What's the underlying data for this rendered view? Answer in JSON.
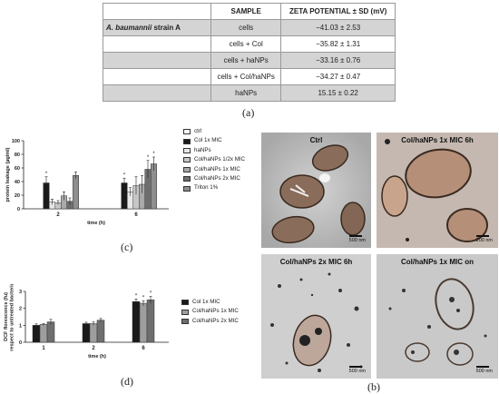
{
  "table": {
    "headers": [
      "",
      "SAMPLE",
      "ZETA POTENTIAL ± SD (mV)"
    ],
    "strain_label": {
      "italic": "A. baumannii",
      "normal": "strain A"
    },
    "rows": [
      {
        "sample": "cells",
        "zeta": "−41.03 ± 2.53"
      },
      {
        "sample": "cells + Col",
        "zeta": "−35.82 ± 1.31"
      },
      {
        "sample": "cells + haNPs",
        "zeta": "−33.16 ± 0.76"
      },
      {
        "sample": "cells + Col/haNPs",
        "zeta": "−34.27 ± 0.47"
      },
      {
        "sample": "haNPs",
        "zeta": "15.15 ± 0.22"
      }
    ]
  },
  "labels": {
    "a": "(a)",
    "b": "(b)",
    "c": "(c)",
    "d": "(d)"
  },
  "chart_data": [
    {
      "type": "bar",
      "ylabel": "protein leakage (µg/ml)",
      "xlabel": "time (h)",
      "categories": [
        "2",
        "6"
      ],
      "ylim": [
        0,
        100
      ],
      "yticks": [
        "0",
        "20",
        "40",
        "60",
        "80",
        "100"
      ],
      "series": [
        {
          "name": "ctrl",
          "color": "#ffffff",
          "values": [
            0,
            0
          ],
          "errors": [
            0,
            0
          ]
        },
        {
          "name": "Col 1x MIC",
          "color": "#1a1a1a",
          "values": [
            38,
            38
          ],
          "errors": [
            9,
            7
          ]
        },
        {
          "name": "haNPs",
          "color": "#e8e8e8",
          "values": [
            10,
            25
          ],
          "errors": [
            4,
            6
          ]
        },
        {
          "name": "Col/haNPs 1/2x MIC",
          "color": "#c6c6c6",
          "values": [
            9,
            34
          ],
          "errors": [
            3,
            13
          ]
        },
        {
          "name": "Col/haNPs 1x MIC",
          "color": "#a9a9a9",
          "values": [
            19,
            36
          ],
          "errors": [
            6,
            13
          ]
        },
        {
          "name": "Col/haNPs 2x MIC",
          "color": "#6e6e6e",
          "values": [
            11,
            58
          ],
          "errors": [
            5,
            13
          ]
        },
        {
          "name": "Triton 1%",
          "color": "#8e8e8e",
          "values": [
            49,
            66
          ],
          "errors": [
            5,
            10
          ]
        }
      ],
      "annotations": [
        {
          "category": "2",
          "series": "Col 1x MIC",
          "text": "*"
        },
        {
          "category": "6",
          "series": "Col 1x MIC",
          "text": "*"
        },
        {
          "category": "6",
          "series": "Col/haNPs 2x MIC",
          "text": "*"
        },
        {
          "category": "6",
          "series": "Triton 1%",
          "text": "*"
        }
      ]
    },
    {
      "type": "bar",
      "ylabel": "DCF florescence (fu) respect to untreated bacteria",
      "xlabel": "time (h)",
      "categories": [
        "1",
        "2",
        "6"
      ],
      "ylim": [
        0,
        3
      ],
      "yticks": [
        "0",
        "1",
        "2",
        "3"
      ],
      "series": [
        {
          "name": "Col 1x MIC",
          "color": "#1a1a1a",
          "values": [
            1.0,
            1.1,
            2.4
          ],
          "errors": [
            0.08,
            0.08,
            0.15
          ]
        },
        {
          "name": "Col/haNPs 1x MIC",
          "color": "#9e9e9e",
          "values": [
            1.05,
            1.1,
            2.3
          ],
          "errors": [
            0.05,
            0.1,
            0.15
          ]
        },
        {
          "name": "Col/haNPs 2x MIC",
          "color": "#6e6e6e",
          "values": [
            1.2,
            1.3,
            2.5
          ],
          "errors": [
            0.15,
            0.1,
            0.2
          ]
        }
      ],
      "annotations": [
        {
          "category": "6",
          "series": "Col 1x MIC",
          "text": "*"
        },
        {
          "category": "6",
          "series": "Col/haNPs 1x MIC",
          "text": "*"
        },
        {
          "category": "6",
          "series": "Col/haNPs 2x MIC",
          "text": "*"
        }
      ]
    }
  ],
  "tem": [
    {
      "title": "Ctrl",
      "scale": "500 nm"
    },
    {
      "title": "Col/haNPs  1x MIC 6h",
      "scale": "200 nm"
    },
    {
      "title": "Col/haNPs 2x MIC 6h",
      "scale": "500 nm"
    },
    {
      "title": "Col/haNPs 1x MIC  on",
      "scale": "500 nm"
    }
  ]
}
